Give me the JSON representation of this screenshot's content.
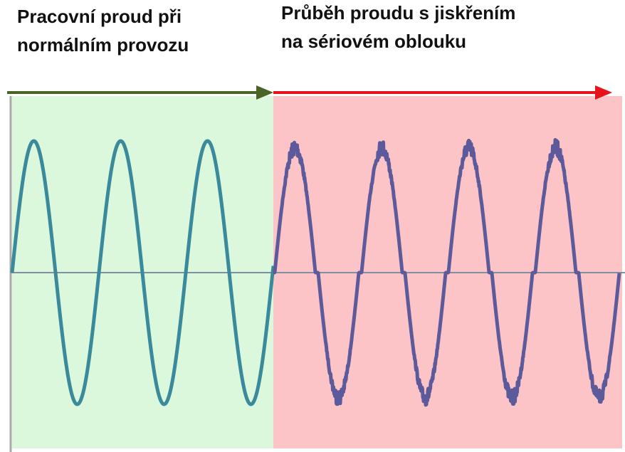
{
  "left_label": {
    "lines": [
      "Pracovní proud při",
      "normálním provozu"
    ]
  },
  "right_label": {
    "lines": [
      "Průběh proudu s jiskřením",
      "na sériovém oblouku"
    ]
  }
}
